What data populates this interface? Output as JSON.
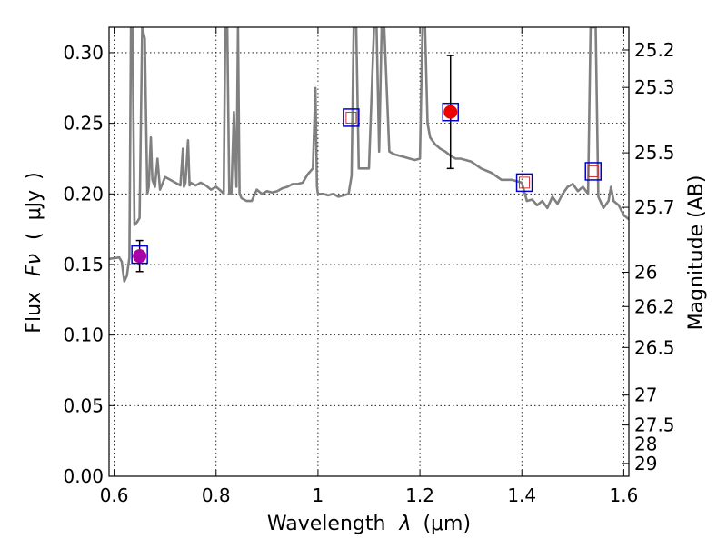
{
  "chart_data": {
    "type": "line",
    "xlabel_prefix": "Wavelength",
    "xlabel_var": "λ",
    "xlabel_units": "(μm)",
    "ylabel_prefix": "Flux",
    "ylabel_var": "Fν",
    "ylabel_units": "μJy",
    "y2label": "Magnitude (AB)",
    "xlim": [
      0.59,
      1.61
    ],
    "ylim": [
      0.0,
      0.318
    ],
    "grid": true,
    "x_ticks": [
      0.6,
      0.8,
      1.0,
      1.2,
      1.4,
      1.6
    ],
    "x_tick_labels": [
      "0.6",
      "0.8",
      "1",
      "1.2",
      "1.4",
      "1.6"
    ],
    "y_ticks": [
      0.0,
      0.05,
      0.1,
      0.15,
      0.2,
      0.25,
      0.3
    ],
    "y_tick_labels": [
      "0.00",
      "0.05",
      "0.10",
      "0.15",
      "0.20",
      "0.25",
      "0.30"
    ],
    "mag_ticks": [
      {
        "label": "25.2",
        "flux": 0.3019
      },
      {
        "label": "25.3",
        "flux": 0.2754
      },
      {
        "label": "25.5",
        "flux": 0.2291
      },
      {
        "label": "25.7",
        "flux": 0.1905
      },
      {
        "label": "26",
        "flux": 0.1445
      },
      {
        "label": "26.2",
        "flux": 0.1202
      },
      {
        "label": "26.5",
        "flux": 0.0912
      },
      {
        "label": "27",
        "flux": 0.0575
      },
      {
        "label": "27.5",
        "flux": 0.0363
      },
      {
        "label": "28",
        "flux": 0.0229
      },
      {
        "label": "29",
        "flux": 0.0091
      }
    ],
    "series": [
      {
        "style": "spectrum",
        "color": "#808080",
        "x": [
          0.59,
          0.61,
          0.615,
          0.62,
          0.625,
          0.63,
          0.633,
          0.636,
          0.64,
          0.645,
          0.65,
          0.655,
          0.66,
          0.665,
          0.668,
          0.672,
          0.675,
          0.68,
          0.685,
          0.69,
          0.7,
          0.71,
          0.72,
          0.73,
          0.735,
          0.737,
          0.74,
          0.745,
          0.748,
          0.75,
          0.76,
          0.77,
          0.78,
          0.79,
          0.8,
          0.81,
          0.815,
          0.818,
          0.822,
          0.826,
          0.83,
          0.835,
          0.84,
          0.843,
          0.846,
          0.85,
          0.86,
          0.87,
          0.88,
          0.89,
          0.9,
          0.91,
          0.92,
          0.93,
          0.94,
          0.95,
          0.96,
          0.97,
          0.98,
          0.99,
          0.995,
          0.998,
          1.0,
          1.01,
          1.02,
          1.03,
          1.04,
          1.05,
          1.06,
          1.066,
          1.07,
          1.075,
          1.08,
          1.09,
          1.1,
          1.11,
          1.115,
          1.12,
          1.125,
          1.13,
          1.14,
          1.15,
          1.16,
          1.17,
          1.18,
          1.19,
          1.2,
          1.205,
          1.21,
          1.215,
          1.22,
          1.23,
          1.24,
          1.25,
          1.26,
          1.27,
          1.28,
          1.3,
          1.32,
          1.34,
          1.36,
          1.38,
          1.4,
          1.41,
          1.42,
          1.43,
          1.44,
          1.45,
          1.46,
          1.47,
          1.48,
          1.49,
          1.5,
          1.51,
          1.52,
          1.53,
          1.535,
          1.54,
          1.545,
          1.55,
          1.56,
          1.57,
          1.575,
          1.58,
          1.59,
          1.6,
          1.61
        ],
        "y": [
          0.154,
          0.155,
          0.152,
          0.138,
          0.142,
          0.155,
          0.318,
          0.318,
          0.178,
          0.18,
          0.183,
          0.318,
          0.31,
          0.2,
          0.205,
          0.24,
          0.21,
          0.205,
          0.225,
          0.203,
          0.212,
          0.21,
          0.208,
          0.206,
          0.232,
          0.205,
          0.208,
          0.238,
          0.206,
          0.208,
          0.206,
          0.208,
          0.206,
          0.203,
          0.205,
          0.202,
          0.2,
          0.318,
          0.318,
          0.2,
          0.2,
          0.258,
          0.205,
          0.318,
          0.2,
          0.197,
          0.195,
          0.195,
          0.203,
          0.2,
          0.202,
          0.201,
          0.202,
          0.204,
          0.205,
          0.207,
          0.207,
          0.208,
          0.214,
          0.218,
          0.275,
          0.205,
          0.2,
          0.2,
          0.199,
          0.2,
          0.198,
          0.199,
          0.2,
          0.213,
          0.318,
          0.318,
          0.218,
          0.218,
          0.218,
          0.318,
          0.318,
          0.23,
          0.318,
          0.318,
          0.23,
          0.228,
          0.227,
          0.226,
          0.225,
          0.224,
          0.225,
          0.318,
          0.318,
          0.25,
          0.24,
          0.235,
          0.232,
          0.23,
          0.227,
          0.225,
          0.225,
          0.223,
          0.218,
          0.215,
          0.21,
          0.21,
          0.208,
          0.195,
          0.196,
          0.192,
          0.195,
          0.19,
          0.198,
          0.193,
          0.2,
          0.205,
          0.207,
          0.202,
          0.205,
          0.2,
          0.318,
          0.318,
          0.318,
          0.198,
          0.19,
          0.195,
          0.205,
          0.195,
          0.192,
          0.185,
          0.182
        ]
      },
      {
        "style": "photometry-point",
        "color": "#aa00aa",
        "x": [
          0.65
        ],
        "y": [
          0.156
        ],
        "yerr": [
          0.011
        ]
      },
      {
        "style": "photometry-point",
        "color": "#ee0000",
        "x": [
          1.26
        ],
        "y": [
          0.258
        ],
        "yerr": [
          0.04
        ]
      },
      {
        "style": "model-box",
        "color": "#0000cc",
        "x": [
          0.65,
          1.065,
          1.26,
          1.405,
          1.54
        ],
        "y": [
          0.157,
          0.254,
          0.258,
          0.208,
          0.216
        ]
      },
      {
        "style": "model-inner-box",
        "color": "#cc3333",
        "x": [
          1.065,
          1.405,
          1.54
        ],
        "y": [
          0.254,
          0.208,
          0.216
        ]
      }
    ]
  }
}
